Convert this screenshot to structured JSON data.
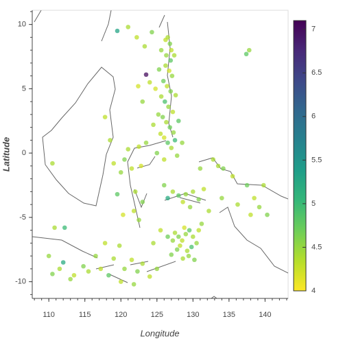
{
  "chart_data": {
    "type": "scatter",
    "x_label": "Longitude",
    "y_label": "Latitude",
    "xlim": [
      107.7,
      143.2
    ],
    "ylim": [
      -11.3,
      11.1
    ],
    "xticks": [
      110,
      115,
      120,
      125,
      130,
      135,
      140
    ],
    "yticks": [
      -10,
      -5,
      0,
      5,
      10
    ],
    "colormap": "viridis_r",
    "clim": [
      4,
      7.1
    ],
    "cticks": [
      4,
      4.5,
      5,
      5.5,
      6,
      6.5,
      7
    ],
    "x": [
      126.5,
      126.8,
      127.0,
      126.3,
      126.9,
      126.2,
      126.7,
      127.1,
      125.9,
      126.4,
      126.9,
      125.6,
      126.1,
      126.6,
      127.2,
      125.8,
      126.3,
      126.8,
      127.3,
      126.0,
      126.5,
      127.0,
      127.5,
      125.5,
      125.2,
      124.8,
      125.3,
      127.6,
      128.0,
      127.8,
      126.0,
      125.0,
      124.5,
      128.5,
      126.2,
      125.6,
      127.4,
      123.5,
      124.0,
      123.0,
      122.4,
      123.3,
      124.3,
      122.2,
      119.5,
      121.0,
      122.5,
      123.5,
      121.0,
      120.5,
      121.5,
      122.8,
      120.0,
      122.0,
      123.0,
      121.8,
      122.5,
      120.3,
      119.5,
      119.0,
      118.5,
      117.8,
      110.5,
      128.0,
      129.0,
      130.0,
      130.8,
      128.6,
      126.5,
      127.2,
      129.6,
      131.5,
      132.2,
      126.0,
      127.5,
      128.0,
      128.5,
      129.0,
      129.5,
      130.0,
      130.5,
      128.2,
      127.8,
      129.2,
      129.8,
      128.8,
      127.2,
      126.5,
      130.8,
      129.4,
      128.6,
      127.0,
      125.5,
      124.5,
      131.2,
      130.2,
      133.5,
      134.2,
      135.5,
      134.0,
      136.2,
      137.5,
      138.5,
      139.2,
      139.8,
      140.3,
      138.0,
      137.4,
      137.8,
      132.8,
      131.0,
      110.0,
      111.5,
      112.2,
      113.5,
      114.8,
      115.5,
      116.5,
      117.2,
      118.3,
      119.0,
      120.5,
      121.5,
      122.3,
      123.0,
      124.0,
      125.0,
      117.8,
      119.8,
      113.0,
      110.8,
      112.0,
      120.0,
      121.8,
      110.5
    ],
    "y": [
      9.0,
      8.5,
      8.0,
      7.6,
      7.2,
      6.8,
      6.4,
      6.0,
      5.6,
      5.2,
      4.8,
      4.4,
      4.0,
      3.6,
      3.2,
      2.8,
      2.4,
      2.0,
      1.6,
      1.2,
      0.8,
      0.4,
      1.0,
      1.5,
      3.0,
      5.0,
      6.5,
      4.5,
      2.5,
      -0.2,
      -0.5,
      0.0,
      2.2,
      0.8,
      8.8,
      8.0,
      7.6,
      6.1,
      5.5,
      4.0,
      5.2,
      8.3,
      9.4,
      9.0,
      9.5,
      9.8,
      0.5,
      0.8,
      0.3,
      -0.5,
      -1.2,
      -1.0,
      -1.5,
      -3.0,
      -3.8,
      -4.5,
      -5.2,
      -4.8,
      -3.2,
      -0.8,
      1.0,
      2.8,
      -0.8,
      -3.3,
      -3.2,
      -3.0,
      -3.6,
      -3.8,
      -3.5,
      -3.0,
      -4.2,
      -2.8,
      -4.5,
      -2.5,
      -6.2,
      -6.5,
      -6.8,
      -6.3,
      -6.0,
      -6.5,
      -7.0,
      -7.2,
      -7.5,
      -7.6,
      -7.3,
      -5.8,
      -6.8,
      -6.5,
      -6.0,
      -8.0,
      -8.2,
      -7.9,
      -6.0,
      -7.0,
      -5.5,
      -8.3,
      -1.0,
      -1.2,
      -1.8,
      -3.5,
      -4.0,
      -2.5,
      -3.5,
      -4.2,
      -2.5,
      -4.8,
      -4.8,
      7.7,
      8.0,
      -0.5,
      -1.2,
      -8.0,
      -9.0,
      -5.8,
      -9.5,
      -8.8,
      -9.2,
      -8.0,
      -9.0,
      -9.5,
      -8.2,
      -9.0,
      -8.3,
      -9.2,
      -8.6,
      -9.6,
      -9.0,
      -7.0,
      -7.2,
      -9.8,
      -5.8,
      -8.5,
      -10.0,
      -10.2,
      -9.4
    ],
    "magnitudes": [
      4.4,
      4.6,
      4.3,
      4.5,
      4.8,
      4.4,
      4.2,
      4.5,
      4.7,
      4.3,
      4.6,
      4.4,
      4.9,
      4.5,
      4.3,
      4.6,
      4.4,
      4.7,
      4.5,
      4.2,
      4.8,
      4.4,
      5.0,
      4.3,
      4.5,
      4.2,
      4.6,
      4.4,
      4.8,
      4.5,
      4.3,
      4.6,
      4.4,
      4.5,
      4.3,
      4.5,
      4.4,
      7.0,
      4.3,
      4.5,
      4.2,
      4.4,
      4.6,
      4.3,
      5.3,
      4.4,
      4.3,
      4.5,
      4.4,
      4.6,
      4.3,
      4.2,
      4.5,
      4.4,
      4.6,
      4.3,
      4.5,
      4.2,
      4.8,
      4.3,
      4.4,
      4.3,
      4.4,
      4.8,
      4.5,
      4.4,
      4.6,
      4.3,
      5.2,
      4.4,
      4.5,
      4.3,
      4.4,
      4.6,
      4.4,
      4.6,
      4.3,
      4.5,
      4.8,
      4.4,
      4.5,
      4.3,
      4.6,
      4.4,
      4.9,
      4.2,
      4.5,
      4.7,
      4.3,
      4.5,
      4.4,
      4.6,
      4.3,
      4.4,
      4.5,
      4.6,
      4.4,
      4.6,
      4.3,
      4.5,
      4.4,
      4.7,
      4.3,
      4.5,
      4.4,
      4.6,
      4.3,
      4.8,
      4.5,
      4.4,
      4.5,
      4.5,
      4.4,
      5.0,
      4.3,
      4.6,
      4.4,
      4.5,
      4.3,
      4.8,
      4.4,
      4.5,
      4.3,
      4.6,
      4.4,
      4.3,
      4.5,
      4.3,
      4.4,
      4.5,
      4.4,
      5.2,
      4.3,
      4.5,
      4.6
    ]
  }
}
